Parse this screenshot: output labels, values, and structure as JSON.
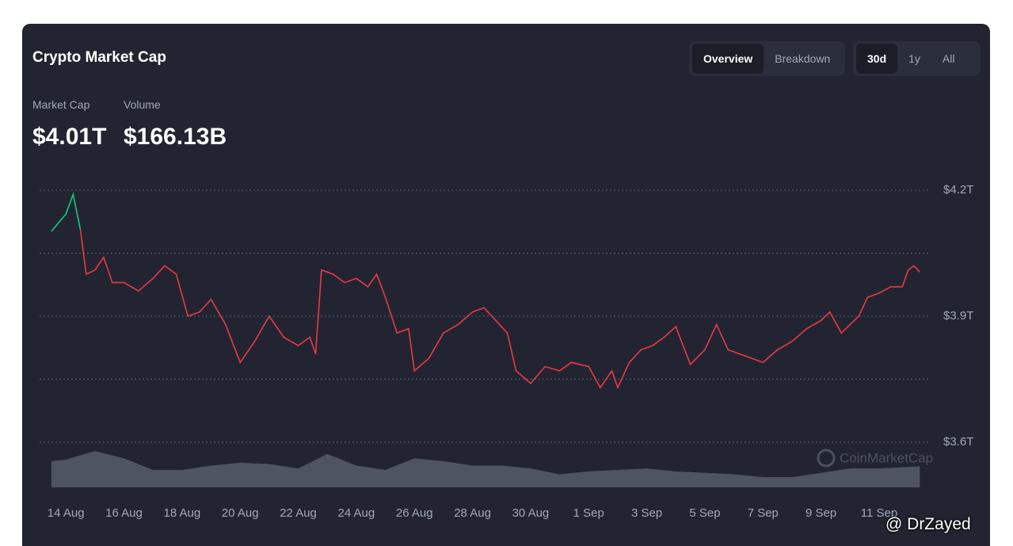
{
  "header": {
    "title": "Crypto Market Cap",
    "tabs": [
      {
        "label": "Overview",
        "active": true
      },
      {
        "label": "Breakdown",
        "active": false
      }
    ],
    "ranges": [
      {
        "label": "30d",
        "active": true
      },
      {
        "label": "1y",
        "active": false
      },
      {
        "label": "All",
        "active": false
      }
    ]
  },
  "stats": [
    {
      "label": "Market Cap",
      "value": "$4.01T"
    },
    {
      "label": "Volume",
      "value": "$166.13B"
    }
  ],
  "watermark": "CoinMarketCap",
  "credit": "@ DrZayed",
  "chart_data": {
    "type": "line",
    "x": [
      -0.5,
      0,
      0.25,
      0.5,
      0.7,
      1,
      1.3,
      1.6,
      2,
      2.5,
      3,
      3.4,
      3.8,
      4.2,
      4.6,
      5,
      5.5,
      6,
      6.5,
      7,
      7.5,
      8,
      8.4,
      8.6,
      8.8,
      9.2,
      9.6,
      10,
      10.4,
      10.7,
      11,
      11.4,
      11.8,
      12,
      12.5,
      13,
      13.5,
      14,
      14.4,
      14.8,
      15.2,
      15.5,
      16,
      16.5,
      17,
      17.4,
      18,
      18.4,
      18.8,
      19,
      19.4,
      19.8,
      20.2,
      20.6,
      21,
      21.5,
      22,
      22.4,
      22.8,
      23.2,
      23.6,
      24,
      24.5,
      25,
      25.5,
      26,
      26.3,
      26.7,
      27,
      27.3,
      27.6,
      28,
      28.4,
      28.8,
      29,
      29.2,
      29.4
    ],
    "series": [
      {
        "color": "#ea3943",
        "up_color": "#16c784",
        "values": [
          4.102,
          4.143,
          4.19,
          4.106,
          4.0,
          4.01,
          4.04,
          3.98,
          3.98,
          3.96,
          3.99,
          4.02,
          4.0,
          3.9,
          3.91,
          3.94,
          3.88,
          3.79,
          3.84,
          3.9,
          3.85,
          3.83,
          3.85,
          3.81,
          4.01,
          4.0,
          3.98,
          3.99,
          3.97,
          4.0,
          3.945,
          3.86,
          3.87,
          3.77,
          3.8,
          3.86,
          3.88,
          3.91,
          3.92,
          3.89,
          3.86,
          3.77,
          3.74,
          3.78,
          3.77,
          3.79,
          3.78,
          3.73,
          3.77,
          3.73,
          3.79,
          3.82,
          3.83,
          3.85,
          3.875,
          3.785,
          3.82,
          3.88,
          3.82,
          3.81,
          3.8,
          3.79,
          3.82,
          3.84,
          3.87,
          3.89,
          3.91,
          3.86,
          3.88,
          3.9,
          3.945,
          3.955,
          3.97,
          3.97,
          4.01,
          4.02,
          4.005
        ]
      }
    ],
    "xlim": [
      -0.55,
      29.5
    ],
    "xticks": [
      {
        "value": 0,
        "label": "14 Aug"
      },
      {
        "value": 2,
        "label": "16 Aug"
      },
      {
        "value": 4,
        "label": "18 Aug"
      },
      {
        "value": 6,
        "label": "20 Aug"
      },
      {
        "value": 8,
        "label": "22 Aug"
      },
      {
        "value": 10,
        "label": "24 Aug"
      },
      {
        "value": 12,
        "label": "26 Aug"
      },
      {
        "value": 14,
        "label": "28 Aug"
      },
      {
        "value": 16,
        "label": "30 Aug"
      },
      {
        "value": 18,
        "label": "1 Sep"
      },
      {
        "value": 20,
        "label": "3 Sep"
      },
      {
        "value": 22,
        "label": "5 Sep"
      },
      {
        "value": 24,
        "label": "7 Sep"
      },
      {
        "value": 26,
        "label": "9 Sep"
      },
      {
        "value": 28,
        "label": "11 Sep"
      }
    ],
    "ylim": [
      3.6,
      4.2
    ],
    "yticks": [
      {
        "value": 3.6,
        "label": "$3.6T"
      },
      {
        "value": 3.9,
        "label": "$3.9T"
      },
      {
        "value": 4.2,
        "label": "$4.2T"
      }
    ],
    "minor_yticks": [
      3.75,
      4.05
    ],
    "grid": true,
    "volume": {
      "color": "#5b6070",
      "x": [
        -0.5,
        0,
        1,
        2,
        3,
        4,
        5,
        6,
        7,
        8,
        9,
        10,
        11,
        12,
        13,
        14,
        15,
        16,
        17,
        18,
        19,
        20,
        21,
        22,
        23,
        24,
        25,
        26,
        27,
        28,
        29,
        29.4
      ],
      "values": [
        180,
        190,
        250,
        200,
        120,
        120,
        150,
        170,
        160,
        130,
        230,
        150,
        120,
        200,
        180,
        150,
        150,
        130,
        90,
        110,
        120,
        130,
        110,
        100,
        90,
        70,
        70,
        100,
        130,
        130,
        140,
        145
      ],
      "lim": [
        0,
        300
      ]
    }
  }
}
